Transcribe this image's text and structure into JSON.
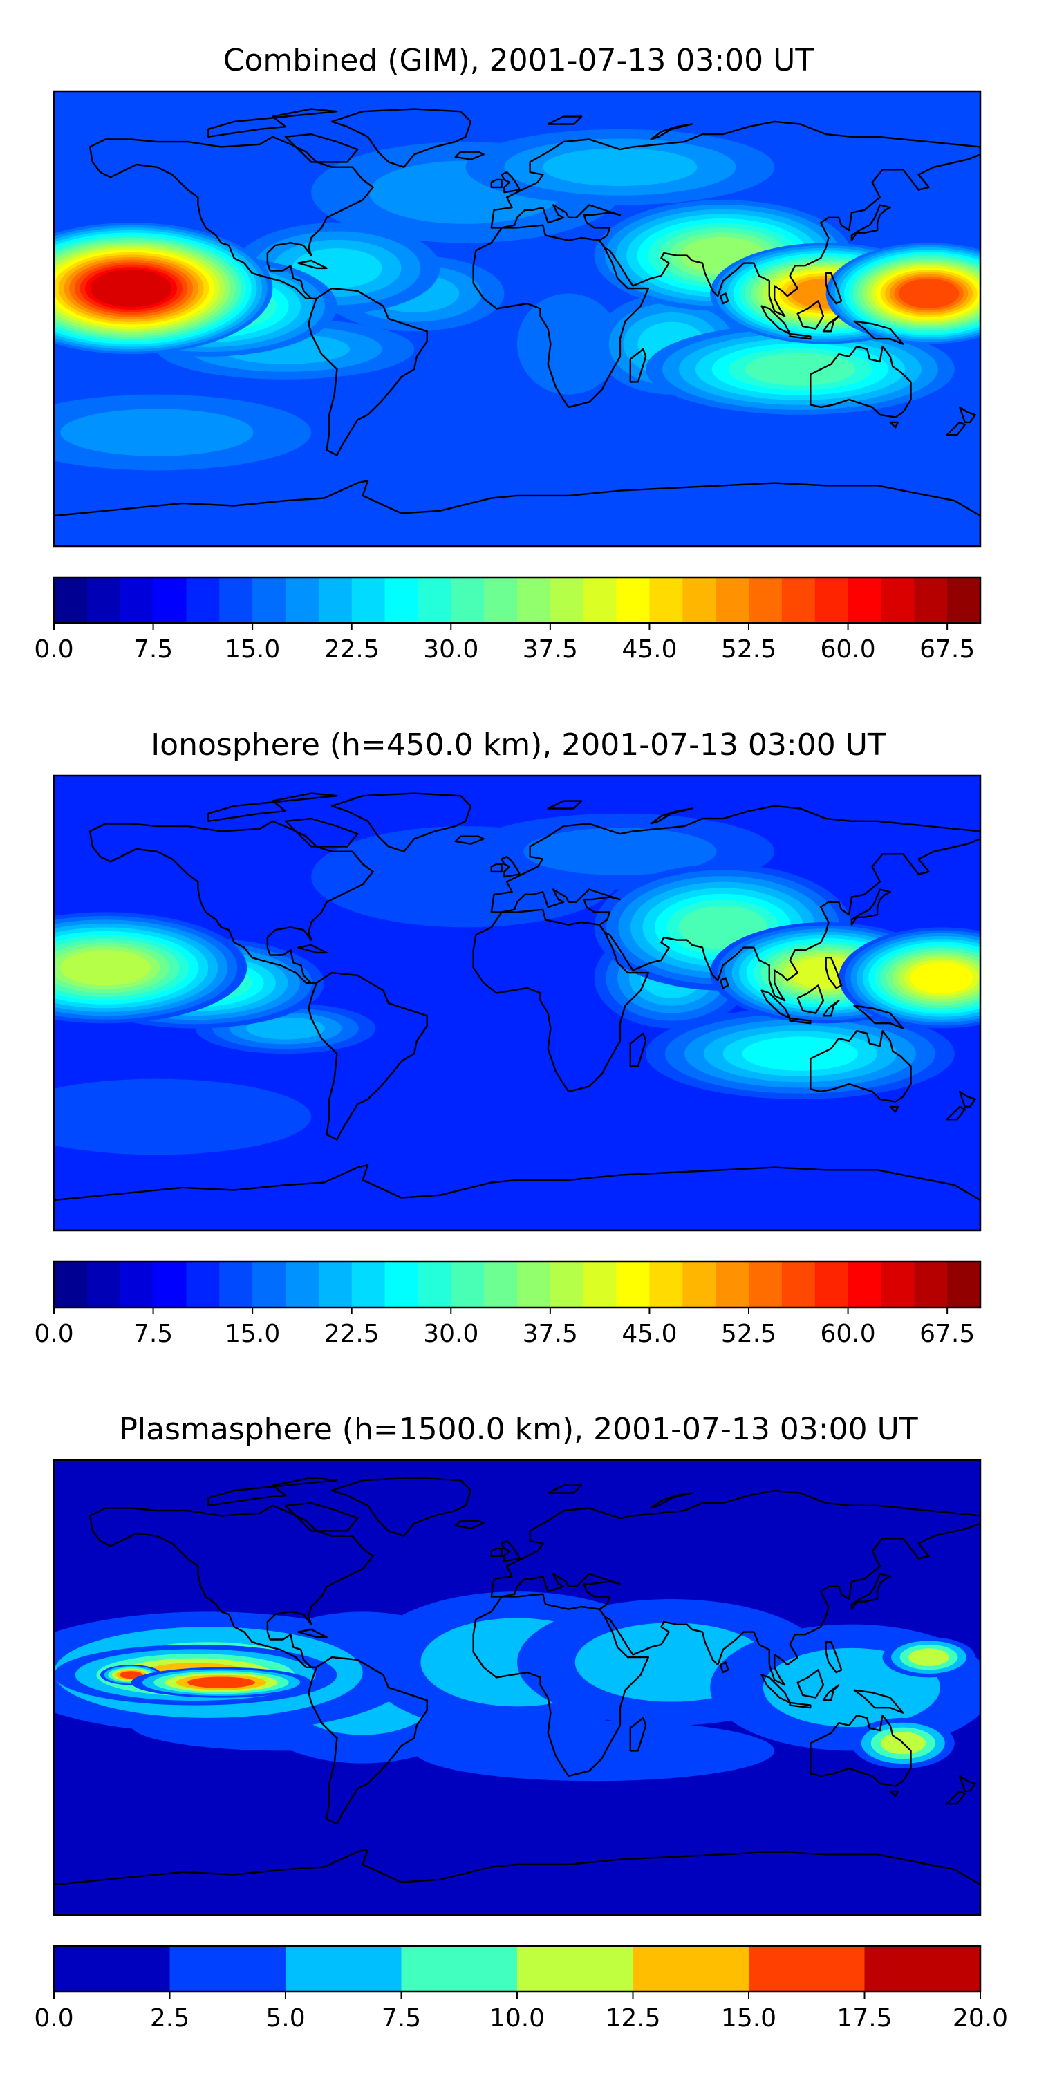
{
  "panels": [
    {
      "title": "Combined (GIM), 2001-07-13 03:00 UT",
      "colorbar": {
        "ticks": [
          "0.0",
          "7.5",
          "15.0",
          "22.5",
          "30.0",
          "37.5",
          "45.0",
          "52.5",
          "60.0",
          "67.5"
        ],
        "min": 0,
        "max": 70,
        "levels": 28
      }
    },
    {
      "title": "Ionosphere  (h=450.0 km), 2001-07-13 03:00 UT",
      "colorbar": {
        "ticks": [
          "0.0",
          "7.5",
          "15.0",
          "22.5",
          "30.0",
          "37.5",
          "45.0",
          "52.5",
          "60.0",
          "67.5"
        ],
        "min": 0,
        "max": 70,
        "levels": 28
      }
    },
    {
      "title": "Plasmasphere (h=1500.0 km), 2001-07-13 03:00 UT",
      "colorbar": {
        "ticks": [
          "0.0",
          "2.5",
          "5.0",
          "7.5",
          "10.0",
          "12.5",
          "15.0",
          "17.5",
          "20.0"
        ],
        "min": 0,
        "max": 20,
        "levels": 8
      }
    }
  ],
  "colormap": "jet"
}
